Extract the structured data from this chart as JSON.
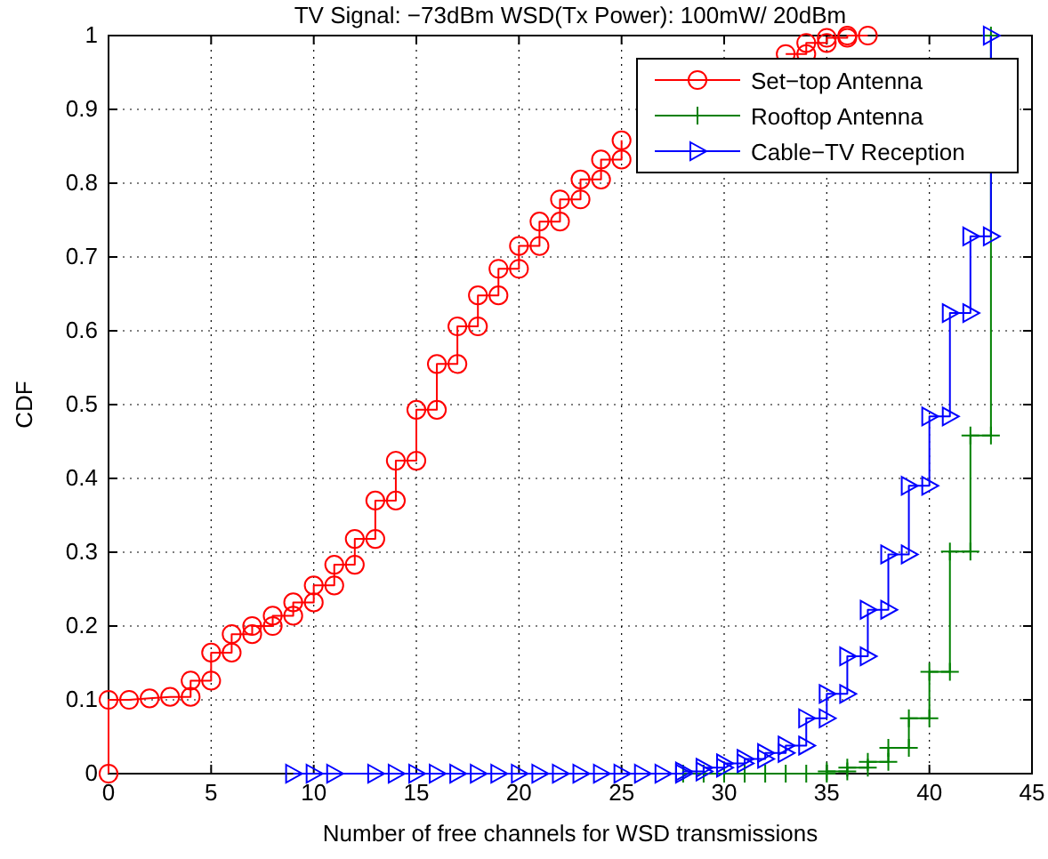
{
  "chart_data": {
    "type": "line",
    "title": "TV Signal: −73dBm WSD(Tx Power): 100mW/ 20dBm",
    "xlabel": "Number of free channels for WSD transmissions",
    "ylabel": "CDF",
    "xlim": [
      0,
      45
    ],
    "xticks": [
      0,
      5,
      10,
      15,
      20,
      25,
      30,
      35,
      40,
      45
    ],
    "ylim": [
      0,
      1
    ],
    "yticks": [
      0,
      0.1,
      0.2,
      0.3,
      0.4,
      0.5,
      0.6,
      0.7,
      0.8,
      0.9,
      1
    ],
    "grid": true,
    "legend": "top right",
    "line_style": "solid",
    "series": [
      {
        "name": "Set−top Antenna",
        "color": "#ff0000",
        "marker": "circle",
        "x": [
          0,
          0,
          1,
          2,
          3,
          4,
          4,
          5,
          5,
          6,
          6,
          7,
          7,
          8,
          8,
          9,
          9,
          10,
          10,
          11,
          11,
          12,
          12,
          13,
          13,
          14,
          14,
          15,
          15,
          16,
          16,
          17,
          17,
          18,
          18,
          19,
          19,
          20,
          20,
          21,
          21,
          22,
          22,
          23,
          23,
          24,
          24,
          25,
          25,
          26,
          33,
          34,
          34,
          35,
          35,
          36,
          36,
          37
        ],
        "values": [
          0,
          0.1,
          0.1,
          0.102,
          0.104,
          0.104,
          0.126,
          0.126,
          0.164,
          0.164,
          0.189,
          0.189,
          0.2,
          0.2,
          0.214,
          0.214,
          0.232,
          0.232,
          0.255,
          0.255,
          0.283,
          0.283,
          0.318,
          0.318,
          0.37,
          0.37,
          0.424,
          0.424,
          0.493,
          0.493,
          0.555,
          0.555,
          0.606,
          0.606,
          0.648,
          0.648,
          0.684,
          0.684,
          0.715,
          0.715,
          0.748,
          0.748,
          0.778,
          0.778,
          0.805,
          0.805,
          0.832,
          0.832,
          0.858,
          null,
          0.975,
          0.975,
          0.99,
          0.99,
          0.997,
          0.997,
          1,
          1
        ]
      },
      {
        "name": "Rooftop Antenna",
        "color": "#008000",
        "marker": "cross",
        "x": [
          28,
          29,
          30,
          31,
          32,
          33,
          34,
          35,
          35,
          36,
          36,
          37,
          37,
          38,
          38,
          39,
          39,
          40,
          40,
          41,
          41,
          42,
          42,
          43,
          43
        ],
        "values": [
          0,
          0,
          0,
          0,
          0,
          0,
          0,
          0,
          0.003,
          0.003,
          0.008,
          0.008,
          0.016,
          0.016,
          0.035,
          0.035,
          0.075,
          0.075,
          0.138,
          0.138,
          0.301,
          0.301,
          0.458,
          0.458,
          1
        ]
      },
      {
        "name": "Cable−TV Reception",
        "color": "#0000ff",
        "marker": "triangle",
        "x": [
          9,
          10,
          11,
          13,
          14,
          15,
          16,
          17,
          18,
          19,
          20,
          21,
          22,
          23,
          24,
          25,
          26,
          27,
          28,
          28,
          29,
          29,
          30,
          30,
          31,
          31,
          32,
          32,
          33,
          33,
          34,
          34,
          35,
          35,
          36,
          36,
          37,
          37,
          38,
          38,
          39,
          39,
          40,
          40,
          41,
          41,
          42,
          42,
          43,
          43
        ],
        "values": [
          0,
          0,
          0,
          0,
          0,
          0,
          0,
          0,
          0,
          0,
          0,
          0,
          0,
          0,
          0,
          0,
          0,
          0,
          0,
          0.003,
          0.003,
          0.008,
          0.008,
          0.014,
          0.014,
          0.02,
          0.02,
          0.028,
          0.028,
          0.038,
          0.038,
          0.075,
          0.075,
          0.108,
          0.108,
          0.159,
          0.159,
          0.222,
          0.222,
          0.297,
          0.297,
          0.39,
          0.39,
          0.484,
          0.484,
          0.624,
          0.624,
          0.728,
          0.728,
          1
        ]
      }
    ]
  }
}
